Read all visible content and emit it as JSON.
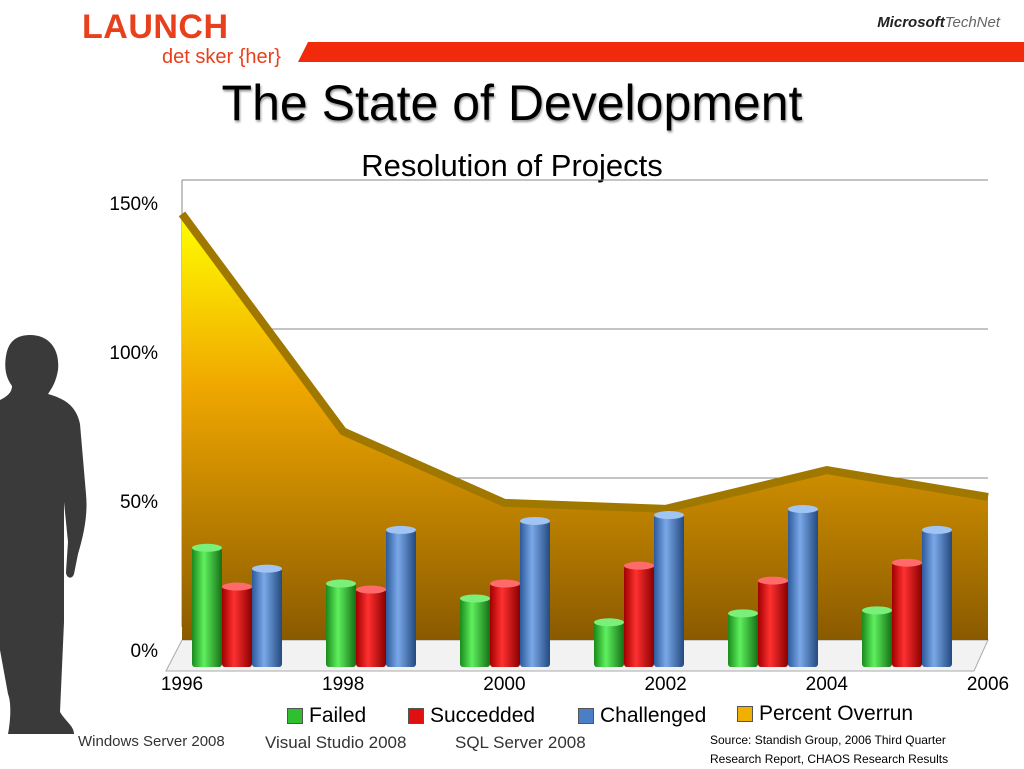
{
  "header": {
    "brand": "LAUNCH",
    "tagline": "det sker {her}",
    "partner_bold": "Microsoft",
    "partner_light": "TechNet"
  },
  "slide": {
    "title": "The State of Development"
  },
  "chart_data": {
    "type": "bar",
    "title": "Resolution of Projects",
    "categories": [
      "1996",
      "1998",
      "2000",
      "2002",
      "2004",
      "2006"
    ],
    "x_tick_labels": [
      "1996",
      "1998",
      "2000",
      "2002",
      "2004",
      "2006"
    ],
    "y_tick_labels": [
      "0%",
      "50%",
      "100%",
      "150%"
    ],
    "ylim": [
      0,
      150
    ],
    "grid": true,
    "series": [
      {
        "name": "Failed",
        "type": "bar",
        "color": "#2fc02f",
        "values": [
          40,
          28,
          23,
          15,
          18,
          19
        ]
      },
      {
        "name": "Succedded",
        "type": "bar",
        "color": "#e01010",
        "values": [
          27,
          26,
          28,
          34,
          29,
          35
        ]
      },
      {
        "name": "Challenged",
        "type": "bar",
        "color": "#4a7fc8",
        "values": [
          33,
          46,
          49,
          51,
          53,
          46
        ]
      },
      {
        "name": "Percent Overrun",
        "type": "area",
        "color": "#f0b000",
        "values": [
          142,
          69,
          45,
          43,
          56,
          47
        ]
      }
    ],
    "legend_position": "bottom"
  },
  "footer": {
    "logos": [
      "Windows Server 2008",
      "Visual Studio 2008",
      "SQL Server 2008"
    ],
    "source_line1": "Source:  Standish Group, 2006 Third Quarter",
    "source_line2": "Research Report, CHAOS Research Results"
  }
}
